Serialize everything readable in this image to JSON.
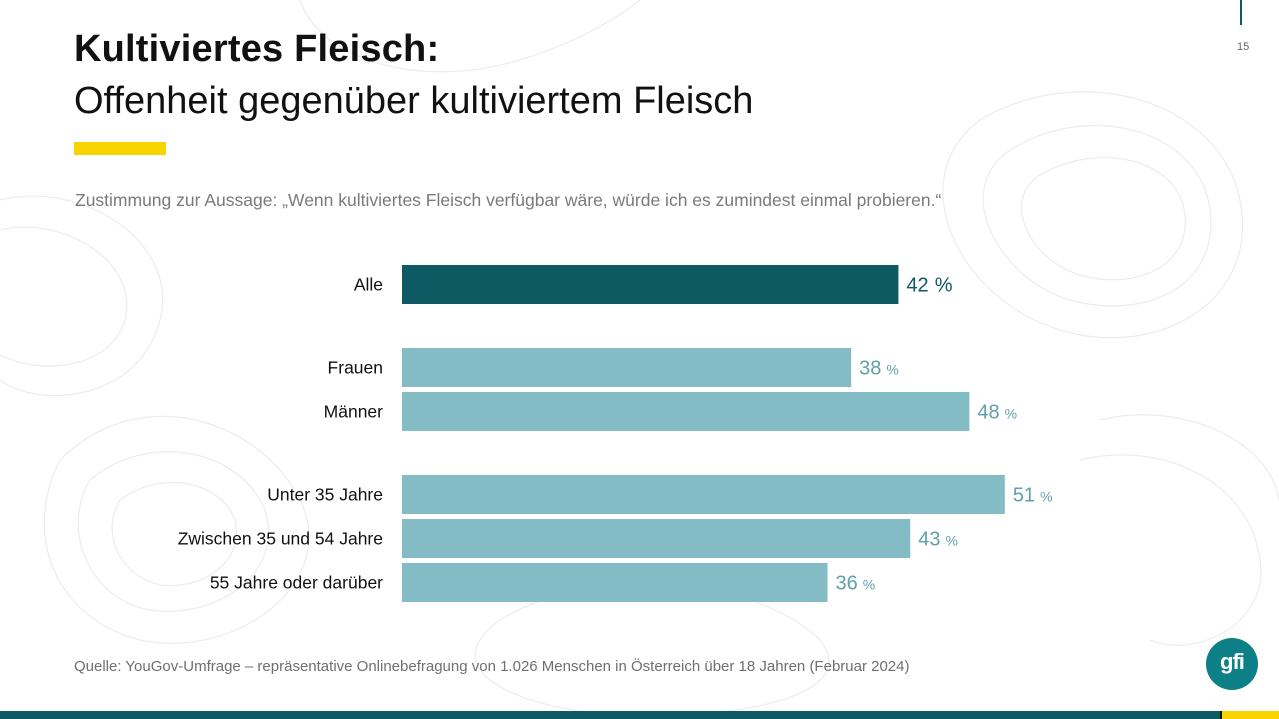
{
  "page": {
    "number": "15"
  },
  "title": {
    "bold": "Kultiviertes Fleisch:",
    "subtitle": "Offenheit gegenüber kultiviertem Fleisch"
  },
  "question": "Zustimmung zur Aussage: „Wenn kultiviertes Fleisch verfügbar wäre, würde ich es zumindest einmal probieren.“",
  "source": "Quelle: YouGov-Umfrage – repräsentative Onlinebefragung von 1.026 Menschen in Österreich über 18 Jahren (Februar 2024)",
  "logo": {
    "text": "gfi"
  },
  "colors": {
    "highlight_bar": "#0d5a62",
    "bar": "#84bcc5",
    "highlight_label": "#0d5a62",
    "label": "#5fa0ab",
    "accent": "#f7d400"
  },
  "chart_data": {
    "type": "bar",
    "orientation": "horizontal",
    "value_suffix": "%",
    "xlim": [
      0,
      60
    ],
    "categories": [
      "Alle",
      "Frauen",
      "Männer",
      "Unter 35 Jahre",
      "Zwischen 35 und 54 Jahre",
      "55 Jahre oder darüber"
    ],
    "values": [
      42,
      38,
      48,
      51,
      43,
      36
    ],
    "groups": [
      [
        "Alle"
      ],
      [
        "Frauen",
        "Männer"
      ],
      [
        "Unter 35 Jahre",
        "Zwischen 35 und 54 Jahre",
        "55 Jahre oder darüber"
      ]
    ],
    "highlighted": [
      "Alle"
    ],
    "title": "",
    "xlabel": "",
    "ylabel": "",
    "grid": false,
    "legend": "none"
  }
}
